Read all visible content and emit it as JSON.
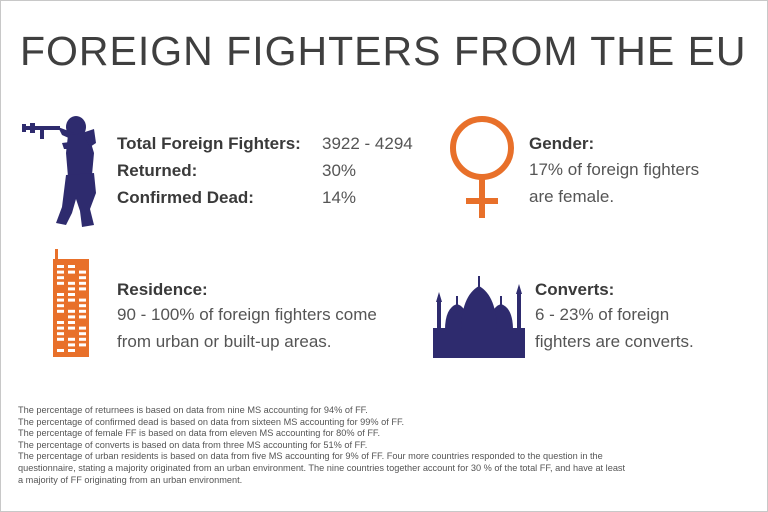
{
  "title": "FOREIGN FIGHTERS FROM THE EU",
  "colors": {
    "navy": "#2e2b6e",
    "orange": "#e8702a",
    "text": "#3a3a3a"
  },
  "icons": {
    "fighter": "soldier-silhouette-icon",
    "gender": "female-symbol-icon",
    "residence": "building-icon",
    "converts": "mosque-icon"
  },
  "stats": {
    "total_label": "Total Foreign Fighters:",
    "total_value": "3922 - 4294",
    "returned_label": "Returned:",
    "returned_value": "30%",
    "dead_label": "Confirmed Dead:",
    "dead_value": "14%"
  },
  "gender": {
    "title": "Gender:",
    "line1": "17% of foreign fighters",
    "line2": "are female."
  },
  "residence": {
    "title": "Residence:",
    "line1": "90 - 100% of foreign fighters come",
    "line2": "from urban or built-up areas."
  },
  "converts": {
    "title": "Converts:",
    "line1": "6 - 23% of foreign",
    "line2": "fighters are converts."
  },
  "notes": [
    "The percentage of returnees is based on data from nine MS accounting for 94% of FF.",
    "The percentage of confirmed dead is based on data from sixteen MS accounting for 99% of FF.",
    "The percentage of female FF is based on data from eleven MS accounting for 80% of FF.",
    "The percentage of converts is based on data from three MS accounting for 51% of FF.",
    "The percentage of urban residents is based on data from five MS accounting for 9% of FF. Four more countries responded to the question in the",
    "questionnaire, stating a majority originated from an urban environment. The nine countries together account for 30 % of the total FF, and have at least",
    "a majority of FF originating from an urban environment."
  ]
}
